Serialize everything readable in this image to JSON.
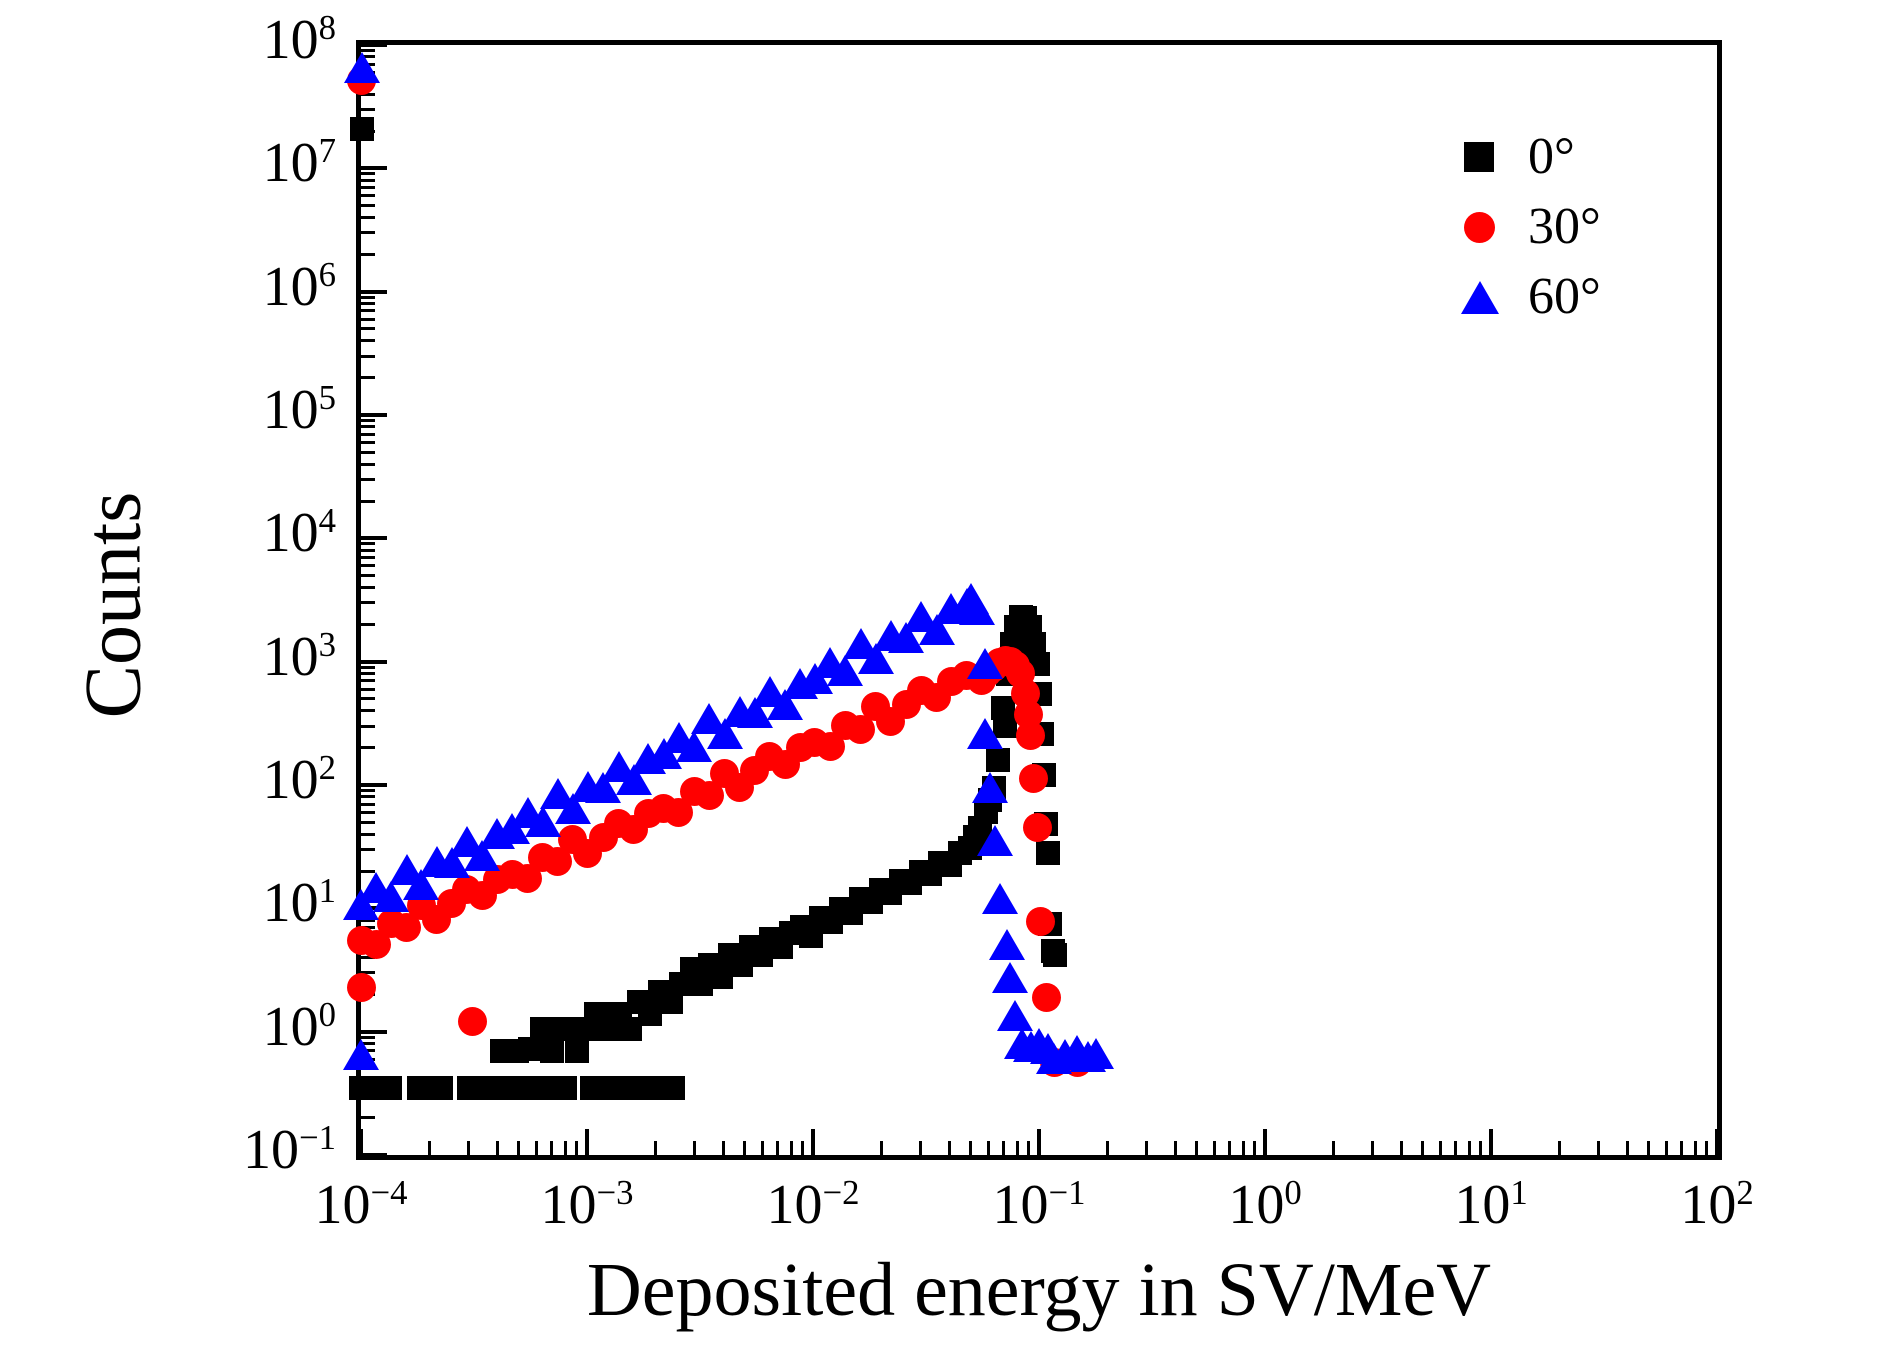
{
  "axes": {
    "xlabel": "Deposited energy in SV/MeV",
    "ylabel": "Counts",
    "x_tick_exponents": [
      -4,
      -3,
      -2,
      -1,
      0,
      1,
      2
    ],
    "y_tick_exponents": [
      8,
      7,
      6,
      5,
      4,
      3,
      2,
      1,
      0,
      -1
    ],
    "xlim": [
      0.0001,
      100
    ],
    "ylim": [
      0.1,
      100000000
    ],
    "xscale": "log",
    "yscale": "log"
  },
  "legend": {
    "position": "top-right",
    "items": [
      {
        "label": "0°",
        "marker": "square",
        "color": "#000000"
      },
      {
        "label": "30°",
        "marker": "circle",
        "color": "#ff0000"
      },
      {
        "label": "60°",
        "marker": "triangle",
        "color": "#0000ff"
      }
    ]
  },
  "colors": {
    "series_0deg": "#000000",
    "series_30deg": "#ff0000",
    "series_60deg": "#0000ff",
    "frame": "#000000"
  },
  "chart_data": {
    "type": "scatter",
    "title": "",
    "xlabel": "Deposited energy in SV/MeV",
    "ylabel": "Counts",
    "xscale": "log",
    "yscale": "log",
    "xlim": [
      0.0001,
      100
    ],
    "ylim": [
      0.1,
      100000000
    ],
    "grid": false,
    "legend_position": "upper right",
    "series": [
      {
        "name": "0deg",
        "label": "0°",
        "marker": "square",
        "color": "#000000",
        "points": [
          [
            0.000101,
            21000000.0
          ],
          [
            0.0001,
            0.35
          ],
          [
            0.000112,
            0.35
          ],
          [
            0.000135,
            0.35
          ],
          [
            0.00018,
            0.35
          ],
          [
            0.0002,
            0.35
          ],
          [
            0.000225,
            0.35
          ],
          [
            0.0003,
            0.35
          ],
          [
            0.00033,
            0.35
          ],
          [
            0.00036,
            0.35
          ],
          [
            0.00044,
            0.35
          ],
          [
            0.000485,
            0.35
          ],
          [
            0.0006,
            0.35
          ],
          [
            0.00066,
            0.35
          ],
          [
            0.00073,
            0.35
          ],
          [
            0.0008,
            0.35
          ],
          [
            0.00105,
            0.35
          ],
          [
            0.00115,
            0.35
          ],
          [
            0.00127,
            0.35
          ],
          [
            0.0014,
            0.35
          ],
          [
            0.00154,
            0.35
          ],
          [
            0.0017,
            0.35
          ],
          [
            0.002,
            0.35
          ],
          [
            0.0022,
            0.35
          ],
          [
            0.0024,
            0.35
          ],
          [
            0.00042,
            0.7
          ],
          [
            0.00049,
            0.7
          ],
          [
            0.00056,
            0.72
          ],
          [
            0.00063,
            1.05
          ],
          [
            0.0007,
            0.7
          ],
          [
            0.00078,
            1.05
          ],
          [
            0.0009,
            0.7
          ],
          [
            0.001,
            1.05
          ],
          [
            0.0011,
            1.4
          ],
          [
            0.00125,
            1.05
          ],
          [
            0.0014,
            1.4
          ],
          [
            0.00155,
            1.05
          ],
          [
            0.0017,
            1.75
          ],
          [
            0.0019,
            1.4
          ],
          [
            0.0021,
            2.1
          ],
          [
            0.00235,
            1.75
          ],
          [
            0.0026,
            2.45
          ],
          [
            0.0029,
            3.2
          ],
          [
            0.0032,
            2.45
          ],
          [
            0.0035,
            3.5
          ],
          [
            0.0039,
            2.8
          ],
          [
            0.0043,
            4.2
          ],
          [
            0.0048,
            3.5
          ],
          [
            0.0053,
            4.9
          ],
          [
            0.0059,
            4.2
          ],
          [
            0.0065,
            5.6
          ],
          [
            0.0072,
            4.9
          ],
          [
            0.008,
            6.3
          ],
          [
            0.0089,
            7.0
          ],
          [
            0.0098,
            6.0
          ],
          [
            0.0109,
            8.4
          ],
          [
            0.012,
            7.7
          ],
          [
            0.0133,
            9.8
          ],
          [
            0.0147,
            9.1
          ],
          [
            0.0163,
            11.9
          ],
          [
            0.018,
            11.2
          ],
          [
            0.02,
            14
          ],
          [
            0.022,
            13.3
          ],
          [
            0.0244,
            16.8
          ],
          [
            0.027,
            16.1
          ],
          [
            0.03,
            19.6
          ],
          [
            0.033,
            18.9
          ],
          [
            0.0365,
            23.1
          ],
          [
            0.0404,
            22.4
          ],
          [
            0.0447,
            28
          ],
          [
            0.0494,
            30.8
          ],
          [
            0.052,
            38
          ],
          [
            0.055,
            45
          ],
          [
            0.058,
            60
          ],
          [
            0.061,
            75
          ],
          [
            0.0635,
            95
          ],
          [
            0.066,
            160
          ],
          [
            0.069,
            420
          ],
          [
            0.071,
            300
          ],
          [
            0.073,
            800
          ],
          [
            0.076,
            1400
          ],
          [
            0.079,
            1900
          ],
          [
            0.083,
            2300
          ],
          [
            0.087,
            2250
          ],
          [
            0.091,
            1900
          ],
          [
            0.095,
            1400
          ],
          [
            0.099,
            950
          ],
          [
            0.101,
            550
          ],
          [
            0.103,
            260
          ],
          [
            0.105,
            120
          ],
          [
            0.107,
            48
          ],
          [
            0.11,
            28
          ],
          [
            0.112,
            7.5
          ],
          [
            0.115,
            4.5
          ],
          [
            0.118,
            4.2
          ]
        ]
      },
      {
        "name": "30deg",
        "label": "30°",
        "marker": "circle",
        "color": "#ff0000",
        "points": [
          [
            0.000101,
            52000000.0
          ],
          [
            0.0001,
            2.3
          ],
          [
            0.00031,
            1.2
          ],
          [
            0.0001,
            5.5
          ],
          [
            0.000117,
            5.06
          ],
          [
            0.000136,
            7.53
          ],
          [
            0.000159,
            6.93
          ],
          [
            0.000185,
            10.6
          ],
          [
            0.000216,
            8.09
          ],
          [
            0.000252,
            11
          ],
          [
            0.000294,
            14.3
          ],
          [
            0.000344,
            12.6
          ],
          [
            0.000401,
            17.1
          ],
          [
            0.000468,
            18.9
          ],
          [
            0.000546,
            17.4
          ],
          [
            0.000637,
            25.9
          ],
          [
            0.000743,
            23.8
          ],
          [
            0.000867,
            36.3
          ],
          [
            0.00101,
            27.8
          ],
          [
            0.00118,
            37.8
          ],
          [
            0.00138,
            49.1
          ],
          [
            0.00161,
            43.2
          ],
          [
            0.00187,
            58.6
          ],
          [
            0.00219,
            64.9
          ],
          [
            0.00255,
            59.7
          ],
          [
            0.00298,
            88.9
          ],
          [
            0.00348,
            81.8
          ],
          [
            0.00406,
            125
          ],
          [
            0.00473,
            95.5
          ],
          [
            0.00552,
            130
          ],
          [
            0.00644,
            169
          ],
          [
            0.00752,
            148
          ],
          [
            0.00877,
            201
          ],
          [
            0.0102,
            223
          ],
          [
            0.0119,
            205
          ],
          [
            0.0139,
            305
          ],
          [
            0.0163,
            281
          ],
          [
            0.019,
            429
          ],
          [
            0.0221,
            328
          ],
          [
            0.0258,
            447
          ],
          [
            0.0301,
            579
          ],
          [
            0.0352,
            509
          ],
          [
            0.041,
            692
          ],
          [
            0.0479,
            766
          ],
          [
            0.0559,
            705
          ],
          [
            0.059,
            820
          ],
          [
            0.063,
            900
          ],
          [
            0.067,
            980
          ],
          [
            0.071,
            1030
          ],
          [
            0.075,
            1000
          ],
          [
            0.079,
            930
          ],
          [
            0.083,
            800
          ],
          [
            0.087,
            550
          ],
          [
            0.09,
            370
          ],
          [
            0.092,
            250
          ],
          [
            0.095,
            112
          ],
          [
            0.098,
            45
          ],
          [
            0.102,
            7.8
          ],
          [
            0.108,
            1.9
          ],
          [
            0.117,
            0.56
          ],
          [
            0.148,
            0.56
          ]
        ]
      },
      {
        "name": "60deg",
        "label": "60°",
        "marker": "triangle",
        "color": "#0000ff",
        "points": [
          [
            0.000101,
            65000000.0
          ],
          [
            0.0001,
            0.65
          ],
          [
            0.0001,
            10.7
          ],
          [
            0.000117,
            14.5
          ],
          [
            0.000136,
            12.4
          ],
          [
            0.000159,
            20.6
          ],
          [
            0.000185,
            15.6
          ],
          [
            0.000216,
            23.7
          ],
          [
            0.000252,
            23.2
          ],
          [
            0.000294,
            34.4
          ],
          [
            0.000344,
            26.8
          ],
          [
            0.000401,
            39.7
          ],
          [
            0.000468,
            43.7
          ],
          [
            0.000546,
            59
          ],
          [
            0.000637,
            50.4
          ],
          [
            0.000743,
            83.8
          ],
          [
            0.000867,
            63.7
          ],
          [
            0.00101,
            96.6
          ],
          [
            0.00118,
            94.6
          ],
          [
            0.00138,
            140
          ],
          [
            0.00161,
            109
          ],
          [
            0.00187,
            161
          ],
          [
            0.00219,
            177
          ],
          [
            0.00255,
            240
          ],
          [
            0.00298,
            205
          ],
          [
            0.00348,
            340
          ],
          [
            0.00406,
            259
          ],
          [
            0.00473,
            393
          ],
          [
            0.00552,
            385
          ],
          [
            0.00644,
            570
          ],
          [
            0.00752,
            444
          ],
          [
            0.00877,
            658
          ],
          [
            0.0102,
            723
          ],
          [
            0.0119,
            977
          ],
          [
            0.0139,
            834
          ],
          [
            0.0163,
            1387
          ],
          [
            0.019,
            1054
          ],
          [
            0.0221,
            1600
          ],
          [
            0.0258,
            1567
          ],
          [
            0.0301,
            2323
          ],
          [
            0.0352,
            1807
          ],
          [
            0.041,
            2679
          ],
          [
            0.0479,
            2945
          ],
          [
            0.05,
            3250
          ],
          [
            0.053,
            2600
          ],
          [
            0.0577,
            950
          ],
          [
            0.0577,
            260
          ],
          [
            0.0607,
            95
          ],
          [
            0.0639,
            35
          ],
          [
            0.0672,
            12
          ],
          [
            0.072,
            5
          ],
          [
            0.0745,
            2.7
          ],
          [
            0.078,
            1.35
          ],
          [
            0.084,
            0.8
          ],
          [
            0.092,
            0.75
          ],
          [
            0.1,
            0.8
          ],
          [
            0.11,
            0.72
          ],
          [
            0.117,
            0.6
          ],
          [
            0.13,
            0.65
          ],
          [
            0.148,
            0.7
          ],
          [
            0.165,
            0.62
          ],
          [
            0.178,
            0.66
          ]
        ]
      }
    ]
  }
}
